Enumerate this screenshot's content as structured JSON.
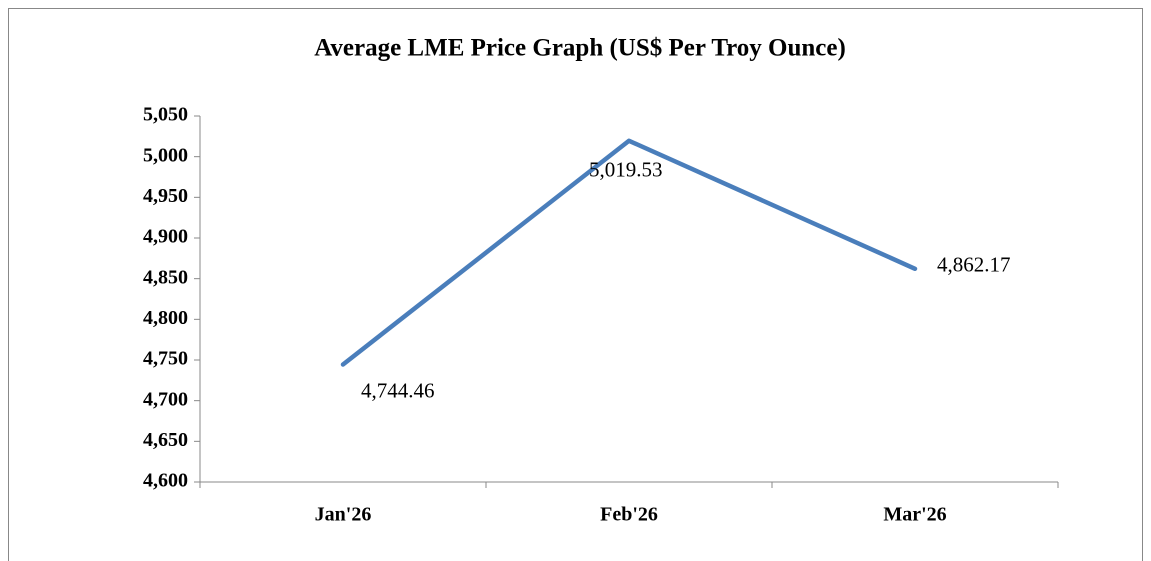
{
  "chart_data": {
    "type": "line",
    "title": "Average LME Price Graph (US$ Per Troy Ounce)",
    "categories": [
      "Jan'26",
      "Feb'26",
      "Mar'26"
    ],
    "series": [
      {
        "name": "Average LME Price",
        "color": "#4a7ebb",
        "values": [
          4744.46,
          5019.53,
          4862.17
        ],
        "value_labels": [
          "4,744.46",
          "5,019.53",
          "4,862.17"
        ]
      }
    ],
    "ylim": [
      4600,
      5050
    ],
    "yticks": [
      {
        "value": 4600,
        "label": "4,600"
      },
      {
        "value": 4650,
        "label": "4,650"
      },
      {
        "value": 4700,
        "label": "4,700"
      },
      {
        "value": 4750,
        "label": "4,750"
      },
      {
        "value": 4800,
        "label": "4,800"
      },
      {
        "value": 4850,
        "label": "4,850"
      },
      {
        "value": 4900,
        "label": "4,900"
      },
      {
        "value": 4950,
        "label": "4,950"
      },
      {
        "value": 5000,
        "label": "5,000"
      },
      {
        "value": 5050,
        "label": "5,050"
      }
    ],
    "grid": false
  }
}
